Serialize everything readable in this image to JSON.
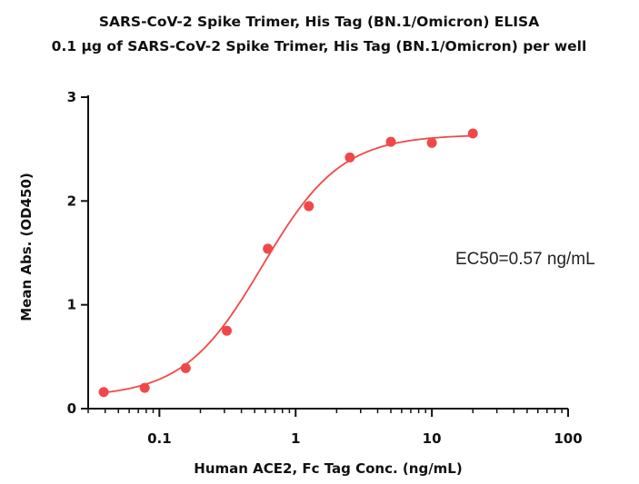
{
  "chart_data": {
    "type": "scatter",
    "title": "SARS-CoV-2 Spike Trimer, His Tag (BN.1/Omicron) ELISA",
    "subtitle": "0.1 μg of SARS-CoV-2 Spike Trimer, His Tag (BN.1/Omicron) per well",
    "xlabel": "Human ACE2, Fc Tag Conc. (ng/mL)",
    "ylabel": "Mean Abs. (OD450)",
    "x_scale": "log",
    "xlim": [
      0.03,
      100
    ],
    "ylim": [
      0,
      3
    ],
    "x_ticks": [
      0.1,
      1,
      10,
      100
    ],
    "x_tick_labels": [
      "0.1",
      "1",
      "10",
      "100"
    ],
    "y_ticks": [
      0,
      1,
      2,
      3
    ],
    "y_tick_labels": [
      "0",
      "1",
      "2",
      "3"
    ],
    "grid": false,
    "annotation": "EC50=0.57 ng/mL",
    "colors": {
      "series": "#f04848",
      "axis": "#111111"
    },
    "series": [
      {
        "x": [
          0.039,
          0.078,
          0.156,
          0.3125,
          0.625,
          1.25,
          2.5,
          5,
          10,
          20
        ],
        "y": [
          0.16,
          0.2,
          0.39,
          0.75,
          1.54,
          1.95,
          2.42,
          2.57,
          2.56,
          2.65
        ]
      }
    ],
    "fit": {
      "type": "4PL",
      "bottom": 0.11,
      "top": 2.64,
      "ec50": 0.57,
      "hill": 1.5
    }
  }
}
